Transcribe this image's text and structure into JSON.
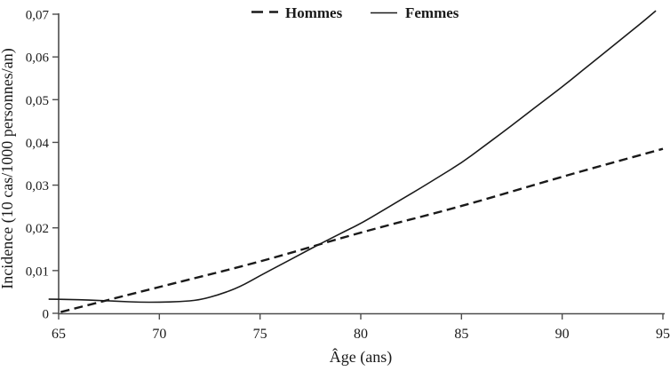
{
  "chart_data": {
    "type": "line",
    "xlabel": "Âge (ans)",
    "ylabel": "Incidence (10 cas/1000 personnes/an)",
    "xlim": [
      65,
      95
    ],
    "ylim": [
      0,
      0.07
    ],
    "x_ticks": [
      65,
      70,
      75,
      80,
      85,
      90,
      95
    ],
    "x_tick_labels": [
      "65",
      "70",
      "75",
      "80",
      "85",
      "90",
      "95"
    ],
    "y_ticks": [
      0,
      0.01,
      0.02,
      0.03,
      0.04,
      0.05,
      0.06,
      0.07
    ],
    "y_tick_labels": [
      "0",
      "0,01",
      "0,02",
      "0,03",
      "0,04",
      "0,05",
      "0,06",
      "0,07"
    ],
    "grid": false,
    "legend_position": "top-center",
    "series": [
      {
        "name": "Hommes",
        "style": "dashed",
        "color": "#1a1a1a",
        "stroke_width": 2.4,
        "dash": "10 5.5",
        "points": [
          [
            65.1,
            0.0003
          ],
          [
            70,
            0.0062
          ],
          [
            75,
            0.012
          ],
          [
            80,
            0.019
          ],
          [
            85,
            0.025
          ],
          [
            90,
            0.032
          ],
          [
            95,
            0.0385
          ]
        ]
      },
      {
        "name": "Femmes",
        "style": "solid",
        "color": "#1a1a1a",
        "stroke_width": 1.6,
        "dash": "",
        "points": [
          [
            64.5,
            0.0033
          ],
          [
            65,
            0.0033
          ],
          [
            66,
            0.0032
          ],
          [
            67,
            0.003
          ],
          [
            68,
            0.0028
          ],
          [
            69,
            0.0026
          ],
          [
            70,
            0.0026
          ],
          [
            71,
            0.0027
          ],
          [
            72,
            0.0031
          ],
          [
            73,
            0.0044
          ],
          [
            74,
            0.0062
          ],
          [
            75,
            0.0088
          ],
          [
            76,
            0.0113
          ],
          [
            77,
            0.0138
          ],
          [
            78,
            0.0163
          ],
          [
            79,
            0.0187
          ],
          [
            80,
            0.021
          ],
          [
            81,
            0.0238
          ],
          [
            82,
            0.0266
          ],
          [
            83,
            0.0294
          ],
          [
            84,
            0.0323
          ],
          [
            85,
            0.0352
          ],
          [
            86,
            0.0387
          ],
          [
            87,
            0.0422
          ],
          [
            88,
            0.0458
          ],
          [
            89,
            0.0494
          ],
          [
            90,
            0.053
          ],
          [
            91,
            0.0568
          ],
          [
            92,
            0.0606
          ],
          [
            93,
            0.0644
          ],
          [
            94,
            0.0682
          ],
          [
            94.65,
            0.0708
          ]
        ]
      }
    ]
  },
  "colors": {
    "text": "#1a1a1a",
    "axis": "#4d4d4d",
    "line": "#1a1a1a",
    "background": "#ffffff"
  }
}
